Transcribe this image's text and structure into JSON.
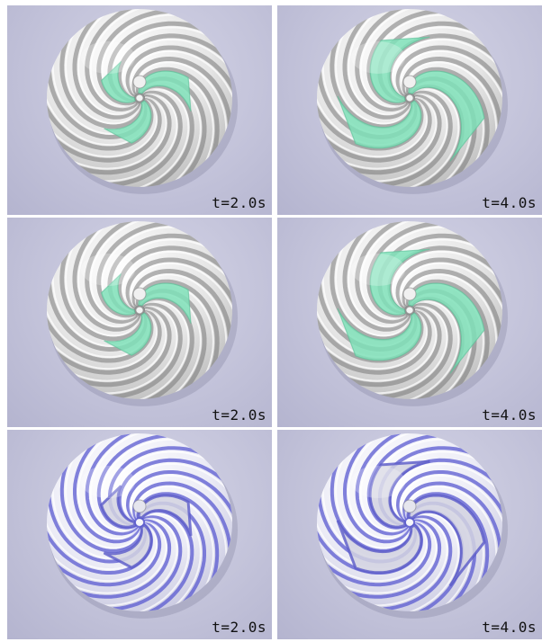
{
  "panels": [
    {
      "label": "t=2.0s",
      "coverage": 0.5,
      "style": "green"
    },
    {
      "label": "t=4.0s",
      "coverage": 0.8,
      "style": "green"
    },
    {
      "label": "t=2.0s",
      "coverage": 0.5,
      "style": "green"
    },
    {
      "label": "t=4.0s",
      "coverage": 0.8,
      "style": "green"
    },
    {
      "label": "t=2.0s",
      "coverage": 0.5,
      "style": "blue"
    },
    {
      "label": "t=4.0s",
      "coverage": 0.8,
      "style": "blue"
    }
  ],
  "colors": {
    "background": "#c6c6dc",
    "sphere": "#f2f2f2",
    "groove": "#8c8c8c",
    "fluid_green": "#7fe0b8",
    "blue_stripe": "#5a5ad0",
    "blue_fluid": "#8888c8"
  }
}
